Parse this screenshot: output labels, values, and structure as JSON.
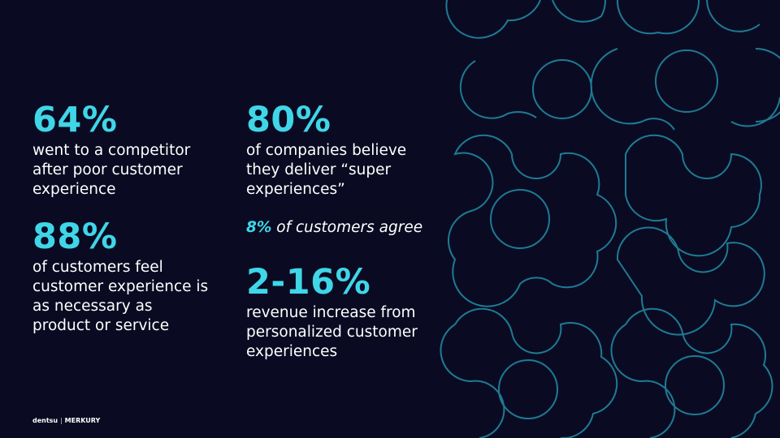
{
  "stats_left": [
    {
      "value": "64%",
      "lines": [
        "went to a competitor",
        "after poor customer",
        "experience"
      ]
    },
    {
      "value": "88%",
      "lines": [
        "of customers feel",
        "customer experience is",
        "as necessary as",
        "product or service"
      ]
    }
  ],
  "stats_right": [
    {
      "value": "80%",
      "lines": [
        "of companies believe",
        "they deliver “super",
        "experiences”"
      ]
    },
    {
      "value": "2-16%",
      "lines": [
        "revenue increase from",
        "personalized customer",
        "experiences"
      ]
    }
  ],
  "callout": {
    "highlight": "8%",
    "text": " of customers agree"
  },
  "footer": {
    "brands": [
      "dentsu",
      "MERKURY"
    ],
    "separator": "|"
  }
}
